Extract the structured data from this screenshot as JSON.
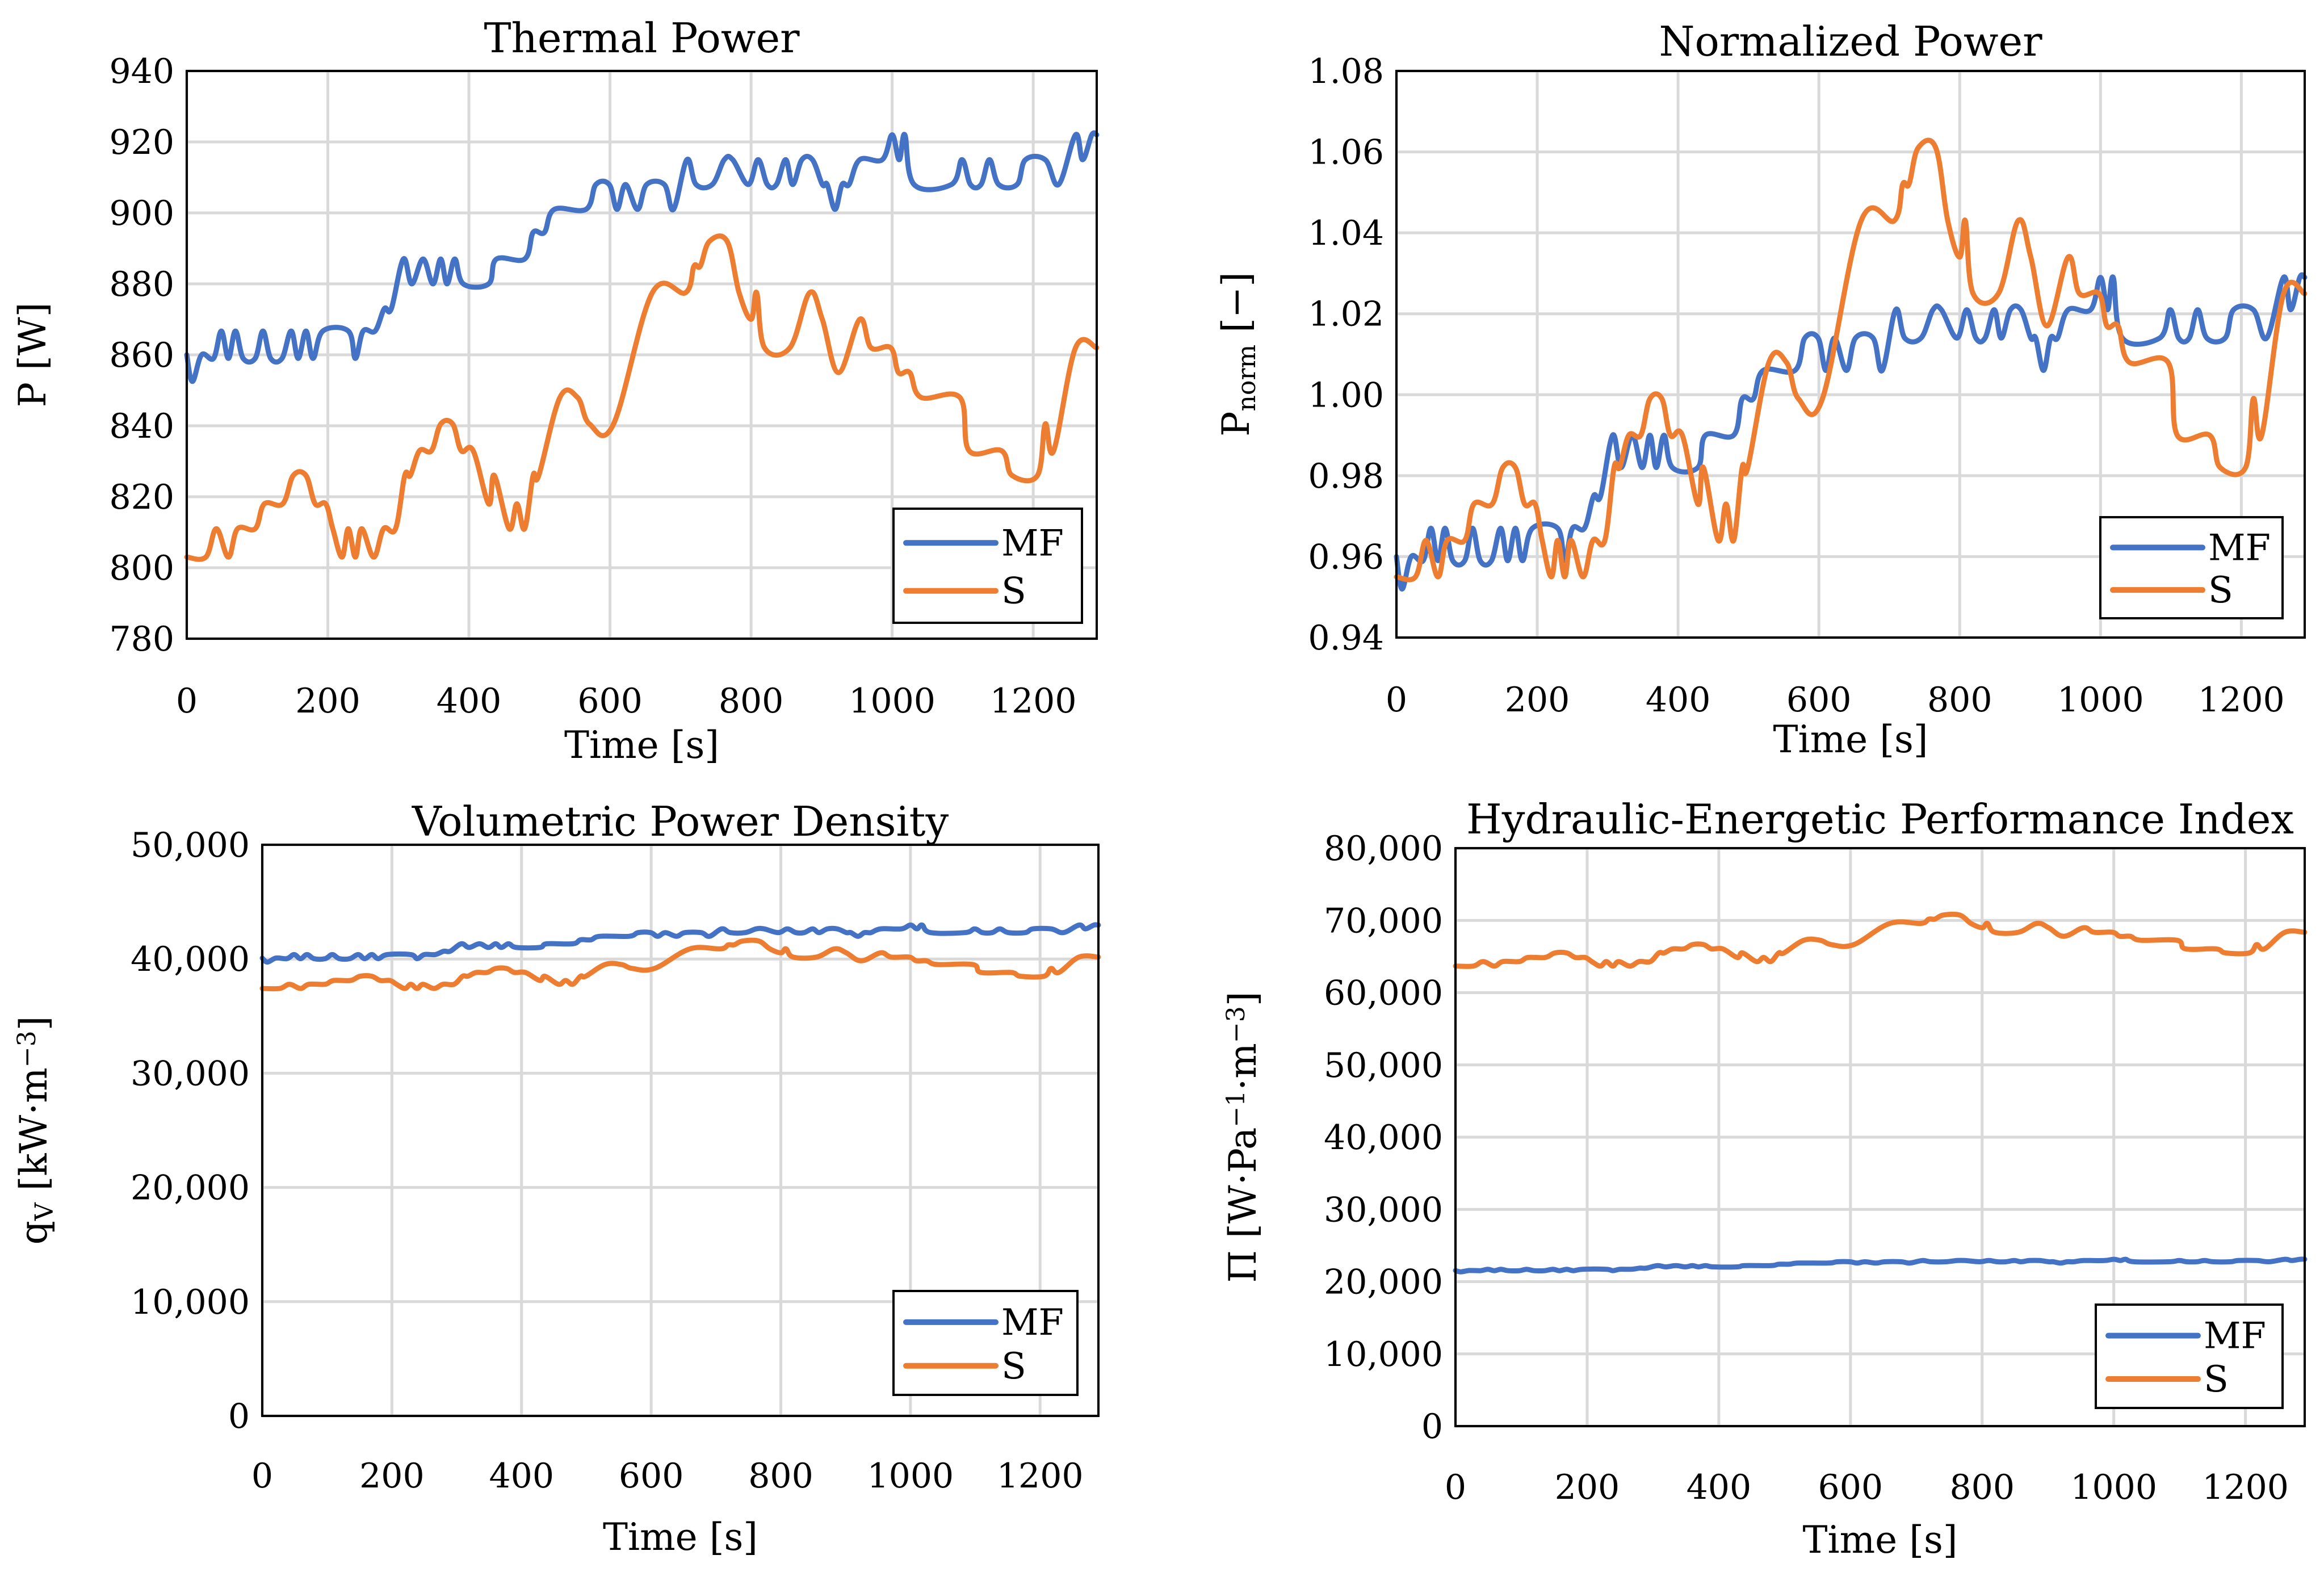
{
  "colors": {
    "MF": "#4472C4",
    "S": "#ED7D31"
  },
  "time": {
    "MF": [
      0,
      8,
      21,
      38,
      49,
      59,
      69,
      80,
      97,
      108,
      119,
      135,
      148,
      158,
      169,
      179,
      193,
      229,
      239,
      250,
      267,
      280,
      290,
      307,
      319,
      335,
      349,
      360,
      369,
      380,
      392,
      428,
      439,
      479,
      491,
      507,
      521,
      566,
      580,
      599,
      610,
      622,
      639,
      652,
      677,
      690,
      709,
      722,
      745,
      762,
      774,
      796,
      810,
      823,
      836,
      849,
      859,
      872,
      887,
      901,
      908,
      919,
      929,
      939,
      954,
      986,
      1000,
      1010,
      1018,
      1031,
      1084,
      1099,
      1111,
      1126,
      1138,
      1151,
      1177,
      1189,
      1217,
      1236,
      1260,
      1270,
      1283,
      1290
    ],
    "S": [
      0,
      27,
      42,
      59,
      72,
      97,
      110,
      136,
      151,
      169,
      182,
      197,
      207,
      220,
      229,
      239,
      248,
      265,
      279,
      296,
      309,
      317,
      330,
      347,
      360,
      377,
      389,
      406,
      428,
      436,
      457,
      468,
      479,
      491,
      499,
      529,
      554,
      571,
      605,
      660,
      707,
      719,
      728,
      741,
      766,
      783,
      800,
      808,
      819,
      855,
      883,
      901,
      924,
      954,
      970,
      998,
      1009,
      1025,
      1041,
      1096,
      1109,
      1155,
      1170,
      1206,
      1217,
      1229,
      1260,
      1290
    ]
  },
  "chart_data": [
    {
      "type": "line",
      "title": "Thermal Power",
      "xlabel": "Time [s]",
      "ylabel": {
        "segments": [
          {
            "text": "P [W]",
            "style": ""
          }
        ]
      },
      "xlim": [
        0,
        1290
      ],
      "ylim": [
        780,
        940
      ],
      "xticks": [
        "0",
        "200",
        "400",
        "600",
        "800",
        "1000",
        "1200"
      ],
      "yticks": [
        "780",
        "800",
        "820",
        "840",
        "860",
        "880",
        "900",
        "920",
        "940"
      ],
      "grid": true,
      "legend": "bottom-right",
      "series": [
        {
          "name": "MF",
          "values": [
            860,
            852.5,
            860,
            859,
            866.7,
            859,
            866.7,
            859,
            859,
            866.7,
            859,
            859,
            866.7,
            859,
            866.7,
            859,
            866.7,
            866.7,
            859,
            866.7,
            866.7,
            873,
            873,
            887,
            880,
            887,
            880,
            887,
            880,
            887,
            880,
            880,
            887,
            887,
            894.5,
            894.5,
            901,
            901,
            908,
            908,
            901,
            908,
            901,
            908,
            908,
            901,
            915,
            908,
            908,
            915,
            915,
            908,
            915,
            908,
            908,
            915,
            908,
            915,
            915,
            908,
            908,
            901,
            908,
            908,
            915,
            915,
            922,
            915,
            922,
            908,
            908,
            915,
            908,
            908,
            915,
            908,
            908,
            915,
            915,
            908,
            922,
            915,
            922,
            922
          ]
        },
        {
          "name": "S",
          "values": [
            803,
            803,
            811,
            803,
            811,
            811,
            818,
            818,
            826,
            826,
            818,
            818,
            811,
            803,
            811,
            803,
            811,
            803,
            811,
            811,
            826,
            826,
            833,
            833,
            840.5,
            840.5,
            833,
            833,
            818,
            826,
            811,
            818,
            811,
            826,
            826,
            848,
            848,
            840.5,
            840.5,
            877.5,
            877.5,
            885,
            885,
            892,
            892,
            877.5,
            870,
            877.5,
            862,
            862,
            877.5,
            870,
            855,
            870,
            862,
            862,
            855,
            855,
            848,
            848,
            833,
            833,
            826,
            826,
            840.5,
            833,
            862,
            862
          ]
        }
      ]
    },
    {
      "type": "line",
      "title": "Normalized Power",
      "xlabel": "Time [s]",
      "ylabel": {
        "segments": [
          {
            "text": "P",
            "style": ""
          },
          {
            "text": "norm",
            "style": "sub"
          },
          {
            "text": " [−]",
            "style": ""
          }
        ]
      },
      "xlim": [
        0,
        1290
      ],
      "ylim": [
        0.94,
        1.08
      ],
      "xticks": [
        "0",
        "200",
        "400",
        "600",
        "800",
        "1000",
        "1200"
      ],
      "yticks": [
        "0.94",
        "0.96",
        "0.98",
        "1.00",
        "1.02",
        "1.04",
        "1.06",
        "1.08"
      ],
      "grid": true,
      "legend": "bottom-right",
      "series": [
        {
          "name": "MF",
          "values": [
            0.96,
            0.952,
            0.96,
            0.959,
            0.967,
            0.959,
            0.967,
            0.959,
            0.959,
            0.967,
            0.959,
            0.959,
            0.967,
            0.959,
            0.967,
            0.959,
            0.967,
            0.967,
            0.959,
            0.967,
            0.967,
            0.975,
            0.975,
            0.99,
            0.982,
            0.99,
            0.982,
            0.99,
            0.982,
            0.99,
            0.982,
            0.982,
            0.99,
            0.99,
            0.999,
            0.999,
            1.006,
            1.006,
            1.014,
            1.014,
            1.006,
            1.014,
            1.006,
            1.014,
            1.014,
            1.006,
            1.021,
            1.014,
            1.014,
            1.021,
            1.021,
            1.014,
            1.021,
            1.014,
            1.014,
            1.021,
            1.014,
            1.021,
            1.021,
            1.014,
            1.014,
            1.006,
            1.014,
            1.014,
            1.021,
            1.021,
            1.029,
            1.021,
            1.029,
            1.014,
            1.014,
            1.021,
            1.014,
            1.014,
            1.021,
            1.014,
            1.014,
            1.021,
            1.021,
            1.014,
            1.029,
            1.021,
            1.029,
            1.029
          ]
        },
        {
          "name": "S",
          "values": [
            0.955,
            0.955,
            0.964,
            0.955,
            0.964,
            0.964,
            0.973,
            0.973,
            0.982,
            0.982,
            0.973,
            0.973,
            0.964,
            0.955,
            0.964,
            0.955,
            0.964,
            0.955,
            0.964,
            0.964,
            0.982,
            0.982,
            0.99,
            0.99,
            0.999,
            0.999,
            0.99,
            0.99,
            0.973,
            0.982,
            0.964,
            0.973,
            0.964,
            0.982,
            0.982,
            1.008,
            1.008,
            0.999,
            0.999,
            1.043,
            1.043,
            1.052,
            1.052,
            1.061,
            1.061,
            1.043,
            1.034,
            1.043,
            1.025,
            1.025,
            1.043,
            1.034,
            1.017,
            1.034,
            1.025,
            1.025,
            1.017,
            1.017,
            1.008,
            1.008,
            0.99,
            0.99,
            0.982,
            0.982,
            0.999,
            0.99,
            1.025,
            1.025
          ]
        }
      ]
    },
    {
      "type": "line",
      "title": "Volumetric Power Density",
      "xlabel": "Time [s]",
      "ylabel": {
        "segments": [
          {
            "text": "q",
            "style": ""
          },
          {
            "text": "V",
            "style": "sub"
          },
          {
            "text": " [kW·m",
            "style": ""
          },
          {
            "text": "−3",
            "style": "sup"
          },
          {
            "text": "]",
            "style": ""
          }
        ]
      },
      "xlim": [
        0,
        1290
      ],
      "ylim": [
        0,
        50000
      ],
      "xticks": [
        "0",
        "200",
        "400",
        "600",
        "800",
        "1000",
        "1200"
      ],
      "yticks": [
        "0",
        "10,000",
        "20,000",
        "30,000",
        "40,000",
        "50,000"
      ],
      "grid": true,
      "legend": "bottom-right",
      "series": [
        {
          "name": "MF",
          "values": [
            40080,
            39730,
            40080,
            40030,
            40390,
            40030,
            40390,
            40030,
            40030,
            40390,
            40030,
            40030,
            40390,
            40030,
            40390,
            40030,
            40390,
            40390,
            40030,
            40390,
            40390,
            40680,
            40680,
            41330,
            41010,
            41330,
            41010,
            41330,
            41010,
            41330,
            41010,
            41010,
            41330,
            41330,
            41680,
            41680,
            41990,
            41990,
            42310,
            42310,
            41990,
            42310,
            41990,
            42310,
            42310,
            41990,
            42640,
            42310,
            42310,
            42640,
            42640,
            42310,
            42640,
            42310,
            42310,
            42640,
            42310,
            42640,
            42640,
            42310,
            42310,
            41990,
            42310,
            42310,
            42640,
            42640,
            42970,
            42640,
            42970,
            42310,
            42310,
            42640,
            42310,
            42310,
            42640,
            42310,
            42310,
            42640,
            42640,
            42310,
            42970,
            42640,
            42970,
            42970
          ]
        },
        {
          "name": "S",
          "values": [
            37420,
            37420,
            37790,
            37420,
            37790,
            37790,
            38120,
            38120,
            38490,
            38490,
            38120,
            38120,
            37790,
            37420,
            37790,
            37420,
            37790,
            37420,
            37790,
            37790,
            38490,
            38490,
            38820,
            38820,
            39170,
            39170,
            38820,
            38820,
            38120,
            38490,
            37790,
            38120,
            37790,
            38490,
            38490,
            39520,
            39520,
            39170,
            39170,
            40890,
            40890,
            41240,
            41240,
            41570,
            41570,
            40890,
            40540,
            40890,
            40170,
            40170,
            40890,
            40540,
            39840,
            40540,
            40170,
            40170,
            39840,
            39840,
            39520,
            39520,
            38820,
            38820,
            38490,
            38490,
            39170,
            38820,
            40170,
            40170
          ]
        }
      ]
    },
    {
      "type": "line",
      "title": "Hydraulic-Energetic Performance Index",
      "xlabel": "Time [s]",
      "ylabel": {
        "segments": [
          {
            "text": "Π [W·Pa",
            "style": ""
          },
          {
            "text": "−1",
            "style": "sup"
          },
          {
            "text": "·m",
            "style": ""
          },
          {
            "text": "−3",
            "style": "sup"
          },
          {
            "text": "]",
            "style": ""
          }
        ]
      },
      "xlim": [
        0,
        1290
      ],
      "ylim": [
        0,
        80000
      ],
      "xticks": [
        "0",
        "200",
        "400",
        "600",
        "800",
        "1000",
        "1200"
      ],
      "yticks": [
        "0",
        "10,000",
        "20,000",
        "30,000",
        "40,000",
        "50,000",
        "60,000",
        "70,000",
        "80,000"
      ],
      "grid": true,
      "legend": "bottom-right",
      "series": [
        {
          "name": "MF",
          "values": [
            21540,
            21360,
            21540,
            21520,
            21710,
            21520,
            21710,
            21520,
            21520,
            21710,
            21520,
            21520,
            21710,
            21520,
            21710,
            21520,
            21710,
            21710,
            21520,
            21710,
            21710,
            21870,
            21870,
            22220,
            22040,
            22220,
            22040,
            22220,
            22040,
            22220,
            22040,
            22040,
            22220,
            22220,
            22410,
            22410,
            22570,
            22570,
            22750,
            22750,
            22570,
            22750,
            22570,
            22750,
            22750,
            22570,
            22920,
            22750,
            22750,
            22920,
            22920,
            22750,
            22920,
            22750,
            22750,
            22920,
            22750,
            22920,
            22920,
            22750,
            22750,
            22570,
            22750,
            22750,
            22920,
            22920,
            23100,
            22920,
            23100,
            22750,
            22750,
            22920,
            22750,
            22750,
            22920,
            22750,
            22750,
            22920,
            22920,
            22750,
            23100,
            22920,
            23100,
            23100
          ]
        },
        {
          "name": "S",
          "values": [
            63680,
            63680,
            64310,
            63680,
            64310,
            64310,
            64870,
            64870,
            65500,
            65500,
            64870,
            64870,
            64310,
            63680,
            64310,
            63680,
            64310,
            63680,
            64310,
            64310,
            65500,
            65500,
            66060,
            66060,
            66650,
            66650,
            66060,
            66060,
            64870,
            65500,
            64310,
            64870,
            64310,
            65500,
            65500,
            67250,
            67250,
            66650,
            66650,
            69590,
            69590,
            70180,
            70180,
            70740,
            70740,
            69590,
            68990,
            69590,
            68360,
            68360,
            69590,
            68990,
            67800,
            68990,
            68360,
            68360,
            67800,
            67800,
            67250,
            67250,
            66060,
            66060,
            65500,
            65500,
            66650,
            66060,
            68360,
            68360
          ]
        }
      ]
    }
  ]
}
